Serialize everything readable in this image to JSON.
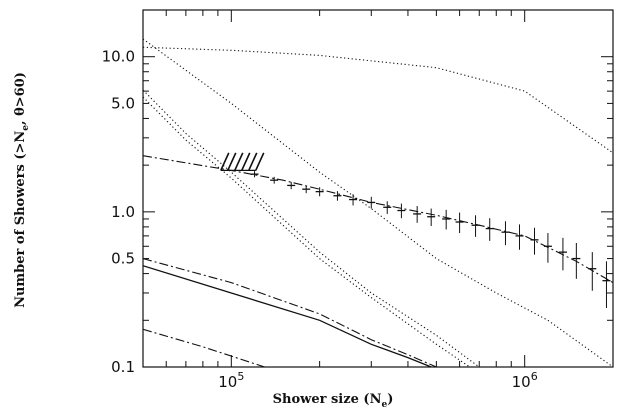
{
  "chart_data": {
    "type": "line",
    "xlabel": "Shower size (N",
    "xlabel_sub": "e",
    "xlabel_close": ")",
    "ylabel": "Number of Showers (>N",
    "ylabel_sub": "e",
    "ylabel_tail": ", θ>60)",
    "xscale": "log",
    "yscale": "log",
    "xlim": [
      50000,
      2000000
    ],
    "ylim": [
      0.1,
      20
    ],
    "grid": false,
    "x_ticks": [
      {
        "value": 100000,
        "base": "10",
        "exp": "5"
      },
      {
        "value": 1000000,
        "base": "10",
        "exp": "6"
      }
    ],
    "y_ticks": [
      {
        "value": 0.1,
        "label": "0.1"
      },
      {
        "value": 0.5,
        "label": "0.5"
      },
      {
        "value": 1.0,
        "label": "1.0"
      },
      {
        "value": 5.0,
        "label": "5.0"
      },
      {
        "value": 10.0,
        "label": "10.0"
      }
    ],
    "series": [
      {
        "style": "dotted",
        "x": [
          50000,
          100000,
          200000,
          500000,
          1000000,
          2000000
        ],
        "values": [
          11.5,
          11.0,
          10.2,
          8.5,
          6.0,
          2.4
        ]
      },
      {
        "style": "dotted",
        "x": [
          50000,
          100000,
          200000,
          300000,
          500000,
          800000,
          1200000,
          2000000
        ],
        "values": [
          13.0,
          5.0,
          1.8,
          1.05,
          0.5,
          0.3,
          0.2,
          0.1
        ]
      },
      {
        "style": "dotted",
        "x": [
          50000,
          70000,
          100000,
          200000,
          300000,
          500000,
          700000
        ],
        "values": [
          6.1,
          3.2,
          1.8,
          0.55,
          0.3,
          0.16,
          0.1
        ]
      },
      {
        "style": "dotted",
        "x": [
          50000,
          70000,
          100000,
          200000,
          300000,
          500000,
          650000
        ],
        "values": [
          5.5,
          2.9,
          1.65,
          0.5,
          0.28,
          0.14,
          0.1
        ]
      },
      {
        "style": "dash-dot",
        "x": [
          50000,
          100000,
          150000,
          200000,
          300000,
          500000,
          700000,
          1000000,
          1500000,
          2000000
        ],
        "values": [
          2.3,
          1.85,
          1.6,
          1.4,
          1.15,
          0.95,
          0.82,
          0.7,
          0.48,
          0.35
        ]
      },
      {
        "style": "dash-dot",
        "x": [
          50000,
          100000,
          200000,
          300000,
          400000,
          500000
        ],
        "values": [
          0.5,
          0.35,
          0.22,
          0.15,
          0.12,
          0.1
        ]
      },
      {
        "style": "solid",
        "x": [
          50000,
          100000,
          200000,
          300000,
          400000,
          480000
        ],
        "values": [
          0.45,
          0.3,
          0.2,
          0.14,
          0.115,
          0.1
        ]
      },
      {
        "style": "dash-dot",
        "x": [
          50000,
          80000,
          120000,
          130000
        ],
        "values": [
          0.175,
          0.135,
          0.105,
          0.1
        ]
      }
    ],
    "data_points": {
      "x": [
        120000,
        140000,
        160000,
        180000,
        200000,
        230000,
        260000,
        300000,
        340000,
        380000,
        430000,
        480000,
        540000,
        600000,
        680000,
        760000,
        860000,
        960000,
        1080000,
        1200000,
        1350000,
        1500000,
        1700000,
        1900000
      ],
      "values": [
        1.75,
        1.6,
        1.48,
        1.4,
        1.35,
        1.27,
        1.2,
        1.15,
        1.07,
        1.02,
        0.97,
        0.93,
        0.9,
        0.86,
        0.82,
        0.78,
        0.74,
        0.7,
        0.66,
        0.6,
        0.55,
        0.5,
        0.43,
        0.36
      ],
      "errors": [
        0.08,
        0.08,
        0.08,
        0.08,
        0.09,
        0.09,
        0.1,
        0.1,
        0.1,
        0.11,
        0.12,
        0.12,
        0.13,
        0.13,
        0.13,
        0.13,
        0.13,
        0.13,
        0.13,
        0.13,
        0.13,
        0.13,
        0.12,
        0.12
      ]
    },
    "hatched_region": {
      "x": [
        95000,
        125000
      ],
      "y": [
        1.85,
        2.4
      ]
    }
  }
}
